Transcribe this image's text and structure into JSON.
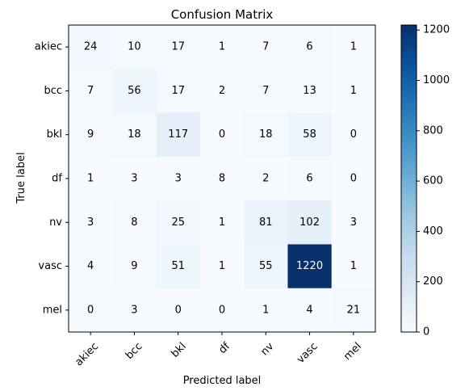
{
  "chart_data": {
    "type": "heatmap",
    "title": "Confusion Matrix",
    "xlabel": "Predicted label",
    "ylabel": "True label",
    "x_categories": [
      "akiec",
      "bcc",
      "bkl",
      "df",
      "nv",
      "vasc",
      "mel"
    ],
    "y_categories": [
      "akiec",
      "bcc",
      "bkl",
      "df",
      "nv",
      "vasc",
      "mel"
    ],
    "values": [
      [
        24,
        10,
        17,
        1,
        7,
        6,
        1
      ],
      [
        7,
        56,
        17,
        2,
        7,
        13,
        1
      ],
      [
        9,
        18,
        117,
        0,
        18,
        58,
        0
      ],
      [
        1,
        3,
        3,
        8,
        2,
        6,
        0
      ],
      [
        3,
        8,
        25,
        1,
        81,
        102,
        3
      ],
      [
        4,
        9,
        51,
        1,
        55,
        1220,
        1
      ],
      [
        0,
        3,
        0,
        0,
        1,
        4,
        21
      ]
    ],
    "colormap": "Blues",
    "colorbar": {
      "range": [
        0,
        1220
      ],
      "ticks": [
        0,
        200,
        400,
        600,
        800,
        1000,
        1200
      ]
    },
    "text_threshold": 610,
    "colors": {
      "cmap_low": "#f7fbff",
      "cmap_high": "#08306b",
      "text_dark": "#000000",
      "text_light": "#ffffff"
    }
  }
}
